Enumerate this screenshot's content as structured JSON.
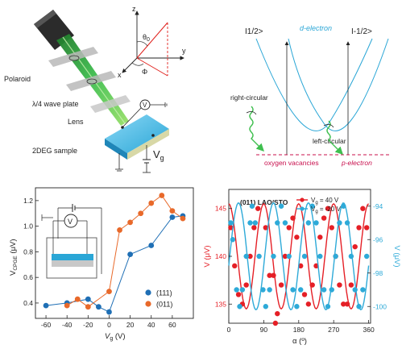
{
  "setup": {
    "labels": {
      "polaroid": "Polaroid",
      "waveplate": "λ/4 wave plate",
      "lens": "Lens",
      "sample": "2DEG sample",
      "voltmeter": "V",
      "vg_main": "V",
      "vg_sub": "g"
    },
    "axes": {
      "z": "z",
      "y": "y",
      "x": "x",
      "theta": "θ",
      "theta_sub": "0",
      "phi": "Φ"
    }
  },
  "band": {
    "state_up": "I1/2>",
    "state_down": "I-1/2>",
    "d_electron": "d-electron",
    "right_circular": "right-circular",
    "left_circular": "left-circular",
    "oxygen_vacancies": "oxygen vacancies",
    "p_electron": "p-electron"
  },
  "colors": {
    "beam": "#3fbf4f",
    "beam_dark": "#1f7a2a",
    "red_axis": "#e0201c",
    "band": "#2aa6d6",
    "vacancy": "#c8104e",
    "sample_top": "#5cc3ee",
    "series_111": "#1f6fb5",
    "series_011": "#e8692a",
    "v40": "#e51f26",
    "vm20": "#2eaad8"
  },
  "chart_data": [
    {
      "type": "line",
      "xlabel_main": "V",
      "xlabel_sub": "g",
      "xlabel_unit": " (V)",
      "ylabel_main": "V",
      "ylabel_sub": "CPGE",
      "ylabel_unit": " (μV)",
      "xlim": [
        -70,
        80
      ],
      "ylim": [
        0.28,
        1.3
      ],
      "xticks": [
        -60,
        -40,
        -20,
        0,
        20,
        40,
        60
      ],
      "yticks": [
        0.4,
        0.6,
        0.8,
        1.0,
        1.2
      ],
      "ytick_labels": [
        "0.4",
        "0.6",
        "0.8",
        "1.0",
        "1.2"
      ],
      "series": [
        {
          "name": "(111)",
          "color": "#1f6fb5",
          "x": [
            -60,
            -40,
            -20,
            -10,
            0,
            20,
            40,
            60,
            70
          ],
          "y": [
            0.38,
            0.4,
            0.43,
            0.37,
            0.33,
            0.78,
            0.85,
            1.07,
            1.08
          ]
        },
        {
          "name": "(011)",
          "color": "#e8692a",
          "x": [
            -40,
            -30,
            -20,
            0,
            10,
            20,
            30,
            40,
            50,
            60,
            70
          ],
          "y": [
            0.38,
            0.43,
            0.37,
            0.49,
            0.97,
            1.03,
            1.1,
            1.18,
            1.24,
            1.12,
            1.06
          ]
        }
      ],
      "legend": "bottom-right"
    },
    {
      "type": "line",
      "title": "(011) LAO/STO",
      "xlabel": "α (º)",
      "ylabel_left": "V (μV)",
      "ylabel_right": "V (μV)",
      "xlim": [
        0,
        365
      ],
      "xticks": [
        0,
        90,
        180,
        270,
        360
      ],
      "ylim_left": [
        133,
        147
      ],
      "yticks_left": [
        135,
        140,
        145
      ],
      "ylim_right": [
        -101,
        -93
      ],
      "yticks_right": [
        -94,
        -96,
        -98,
        -100
      ],
      "series": [
        {
          "name_pre": "V",
          "name_sub": "g",
          "name_post": " = 40 V",
          "color": "#e51f26",
          "axis": "left",
          "mean": 140,
          "amp": 5.5,
          "phase": 0,
          "points": [
            [
              5,
              143
            ],
            [
              15,
              139
            ],
            [
              25,
              136
            ],
            [
              35,
              135
            ],
            [
              45,
              137
            ],
            [
              55,
              140
            ],
            [
              65,
              143
            ],
            [
              75,
              145
            ],
            [
              95,
              143
            ],
            [
              105,
              138
            ],
            [
              115,
              138
            ],
            [
              120,
              133
            ],
            [
              125,
              134
            ],
            [
              135,
              137
            ],
            [
              145,
              140
            ],
            [
              155,
              143
            ],
            [
              165,
              144
            ],
            [
              175,
              142
            ],
            [
              185,
              139
            ],
            [
              195,
              136
            ],
            [
              205,
              135
            ],
            [
              215,
              137
            ],
            [
              225,
              139
            ],
            [
              235,
              142
            ],
            [
              245,
              144
            ],
            [
              255,
              145
            ],
            [
              265,
              143
            ],
            [
              275,
              140
            ],
            [
              285,
              137
            ],
            [
              295,
              135
            ],
            [
              305,
              135
            ],
            [
              315,
              137
            ],
            [
              325,
              141
            ],
            [
              335,
              143
            ],
            [
              345,
              145
            ],
            [
              355,
              143
            ]
          ]
        },
        {
          "name_pre": "V",
          "name_sub": "g",
          "name_post": " = -20 V",
          "color": "#2eaad8",
          "axis": "right",
          "mean": -97,
          "amp": 3.2,
          "phase": 25,
          "points": [
            [
              5,
              -95
            ],
            [
              10,
              -96
            ],
            [
              20,
              -99
            ],
            [
              28,
              -100
            ],
            [
              35,
              -99
            ],
            [
              45,
              -97
            ],
            [
              55,
              -95
            ],
            [
              60,
              -94
            ],
            [
              68,
              -95
            ],
            [
              78,
              -97
            ],
            [
              88,
              -99
            ],
            [
              95,
              -100
            ],
            [
              105,
              -99
            ],
            [
              115,
              -97
            ],
            [
              125,
              -95
            ],
            [
              135,
              -94
            ],
            [
              145,
              -95
            ],
            [
              155,
              -97
            ],
            [
              165,
              -99
            ],
            [
              175,
              -100
            ],
            [
              185,
              -99
            ],
            [
              195,
              -97
            ],
            [
              205,
              -95
            ],
            [
              215,
              -94
            ],
            [
              225,
              -95
            ],
            [
              235,
              -97
            ],
            [
              245,
              -99
            ],
            [
              255,
              -100
            ],
            [
              265,
              -99
            ],
            [
              275,
              -97
            ],
            [
              285,
              -95
            ],
            [
              295,
              -94
            ],
            [
              305,
              -95
            ],
            [
              315,
              -97
            ],
            [
              325,
              -99
            ],
            [
              335,
              -100
            ],
            [
              345,
              -99
            ],
            [
              355,
              -97
            ]
          ]
        }
      ],
      "legend": "top-right"
    }
  ]
}
